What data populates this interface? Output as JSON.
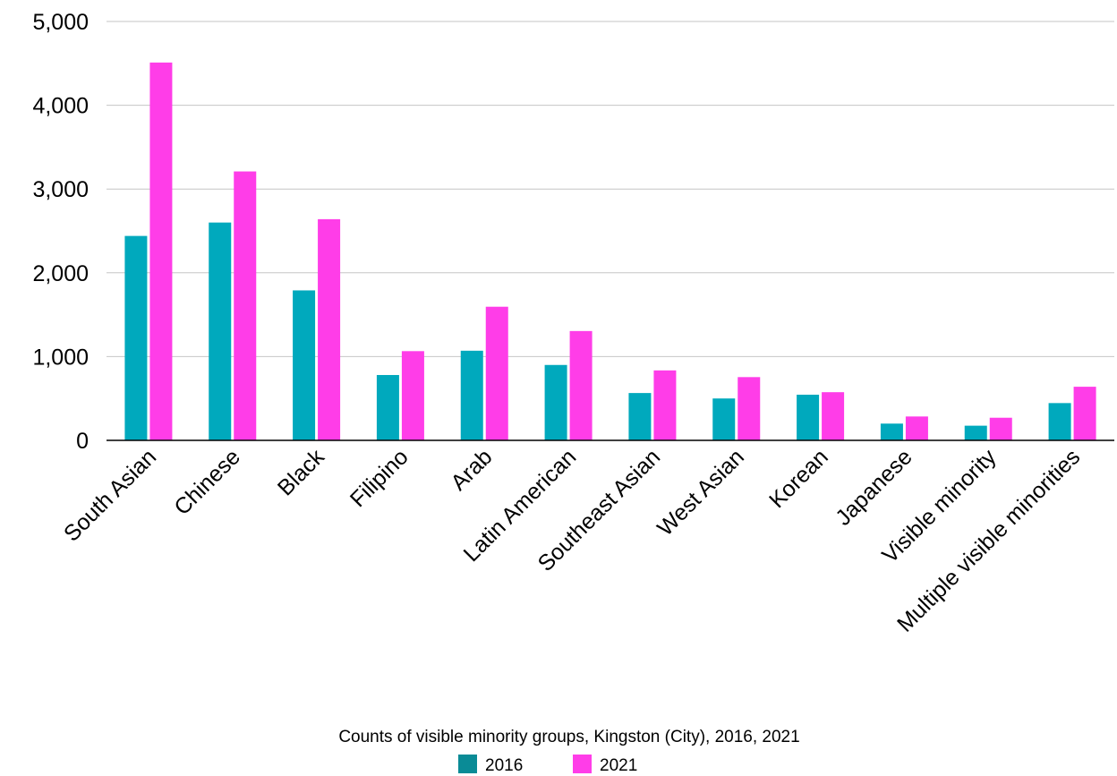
{
  "chart_data": {
    "type": "bar",
    "title": "Counts of visible minority groups, Kingston (City), 2016, 2021",
    "categories": [
      "South Asian",
      "Chinese",
      "Black",
      "Filipino",
      "Arab",
      "Latin American",
      "Southeast Asian",
      "West Asian",
      "Korean",
      "Japanese",
      "Visible minority",
      "Multiple visible minorities"
    ],
    "series": [
      {
        "name": "2016",
        "color": "#00a9bd",
        "legend_color": "#0a8b96",
        "values": [
          2440,
          2600,
          1790,
          780,
          1070,
          900,
          565,
          500,
          545,
          200,
          175,
          445
        ]
      },
      {
        "name": "2021",
        "color": "#ff3de8",
        "legend_color": "#ff3de8",
        "values": [
          4510,
          3210,
          2640,
          1065,
          1595,
          1305,
          835,
          755,
          575,
          285,
          270,
          640
        ]
      }
    ],
    "ylim": [
      0,
      5000
    ],
    "yticks": [
      0,
      1000,
      2000,
      3000,
      4000,
      5000
    ],
    "ytick_labels": [
      "0",
      "1,000",
      "2,000",
      "3,000",
      "4,000",
      "5,000"
    ],
    "grid": true,
    "legend_position": "bottom"
  }
}
